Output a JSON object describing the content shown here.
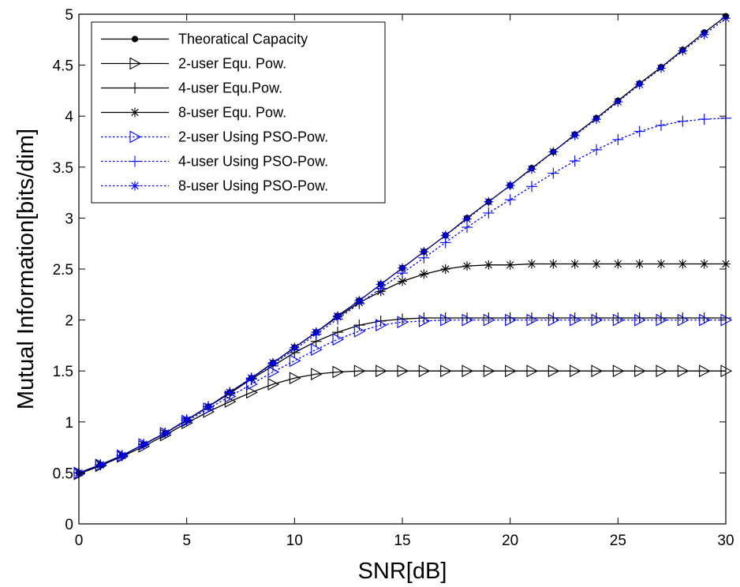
{
  "chart_data": {
    "type": "line",
    "xlabel": "SNR[dB]",
    "ylabel": "Mutual Information[bits/dim]",
    "xlim": [
      0,
      30
    ],
    "ylim": [
      0,
      5
    ],
    "xticks": [
      0,
      5,
      10,
      15,
      20,
      25,
      30
    ],
    "yticks": [
      0,
      0.5,
      1,
      1.5,
      2,
      2.5,
      3,
      3.5,
      4,
      4.5,
      5
    ],
    "xtick_labels": [
      "0",
      "5",
      "10",
      "15",
      "20",
      "25",
      "30"
    ],
    "ytick_labels": [
      "0",
      "0.5",
      "1",
      "1.5",
      "2",
      "2.5",
      "3",
      "3.5",
      "4",
      "4.5",
      "5"
    ],
    "grid": false,
    "legend_position": "top-left",
    "x": [
      0,
      1,
      2,
      3,
      4,
      5,
      6,
      7,
      8,
      9,
      10,
      11,
      12,
      13,
      14,
      15,
      16,
      17,
      18,
      19,
      20,
      21,
      22,
      23,
      24,
      25,
      26,
      27,
      28,
      29,
      30
    ],
    "series": [
      {
        "name": "Theoratical Capacity",
        "color": "#000000",
        "line_style": "solid",
        "marker": "dot",
        "values": [
          0.5,
          0.58,
          0.67,
          0.78,
          0.89,
          1.02,
          1.15,
          1.29,
          1.43,
          1.58,
          1.73,
          1.88,
          2.04,
          2.19,
          2.35,
          2.51,
          2.67,
          2.83,
          3.0,
          3.16,
          3.32,
          3.49,
          3.65,
          3.82,
          3.98,
          4.15,
          4.32,
          4.48,
          4.65,
          4.82,
          4.98
        ]
      },
      {
        "name": "2-user Equ. Pow.",
        "color": "#000000",
        "line_style": "solid",
        "marker": "triangle-right",
        "values": [
          0.49,
          0.57,
          0.66,
          0.76,
          0.87,
          0.99,
          1.1,
          1.2,
          1.29,
          1.37,
          1.43,
          1.47,
          1.49,
          1.5,
          1.5,
          1.5,
          1.5,
          1.5,
          1.5,
          1.5,
          1.5,
          1.5,
          1.5,
          1.5,
          1.5,
          1.5,
          1.5,
          1.5,
          1.5,
          1.5,
          1.5
        ]
      },
      {
        "name": "4-user Equ.Pow.",
        "color": "#000000",
        "line_style": "solid",
        "marker": "plus",
        "values": [
          0.5,
          0.58,
          0.67,
          0.78,
          0.89,
          1.02,
          1.15,
          1.28,
          1.42,
          1.55,
          1.68,
          1.79,
          1.88,
          1.95,
          1.99,
          2.01,
          2.02,
          2.02,
          2.02,
          2.02,
          2.02,
          2.02,
          2.02,
          2.02,
          2.02,
          2.02,
          2.02,
          2.02,
          2.02,
          2.02,
          2.02
        ]
      },
      {
        "name": "8-user Equ. Pow.",
        "color": "#000000",
        "line_style": "solid",
        "marker": "asterisk",
        "values": [
          0.5,
          0.58,
          0.67,
          0.78,
          0.89,
          1.02,
          1.15,
          1.29,
          1.43,
          1.58,
          1.73,
          1.88,
          2.03,
          2.17,
          2.28,
          2.38,
          2.45,
          2.5,
          2.53,
          2.54,
          2.54,
          2.55,
          2.55,
          2.55,
          2.55,
          2.55,
          2.55,
          2.55,
          2.55,
          2.55,
          2.55
        ]
      },
      {
        "name": "2-user Using PSO-Pow.",
        "color": "#0000ff",
        "line_style": "dotted",
        "marker": "triangle-right",
        "values": [
          0.5,
          0.58,
          0.67,
          0.78,
          0.89,
          1.01,
          1.13,
          1.25,
          1.37,
          1.49,
          1.6,
          1.71,
          1.81,
          1.89,
          1.95,
          1.98,
          1.99,
          2.0,
          2.0,
          2.0,
          2.0,
          2.0,
          2.0,
          2.0,
          2.0,
          2.0,
          2.0,
          2.0,
          2.0,
          2.0,
          2.0
        ]
      },
      {
        "name": "4-user Using PSO-Pow.",
        "color": "#0000ff",
        "line_style": "dotted",
        "marker": "plus",
        "values": [
          0.5,
          0.58,
          0.67,
          0.78,
          0.89,
          1.02,
          1.15,
          1.29,
          1.43,
          1.57,
          1.71,
          1.86,
          2.01,
          2.16,
          2.31,
          2.46,
          2.61,
          2.76,
          2.91,
          3.05,
          3.18,
          3.31,
          3.44,
          3.56,
          3.67,
          3.77,
          3.85,
          3.91,
          3.95,
          3.97,
          3.98
        ]
      },
      {
        "name": "8-user Using PSO-Pow.",
        "color": "#0000ff",
        "line_style": "dotted",
        "marker": "asterisk",
        "values": [
          0.5,
          0.58,
          0.67,
          0.78,
          0.89,
          1.02,
          1.15,
          1.29,
          1.43,
          1.58,
          1.73,
          1.88,
          2.04,
          2.19,
          2.35,
          2.51,
          2.67,
          2.83,
          2.99,
          3.16,
          3.32,
          3.48,
          3.65,
          3.81,
          3.97,
          4.14,
          4.31,
          4.47,
          4.64,
          4.8,
          4.96
        ]
      }
    ]
  }
}
